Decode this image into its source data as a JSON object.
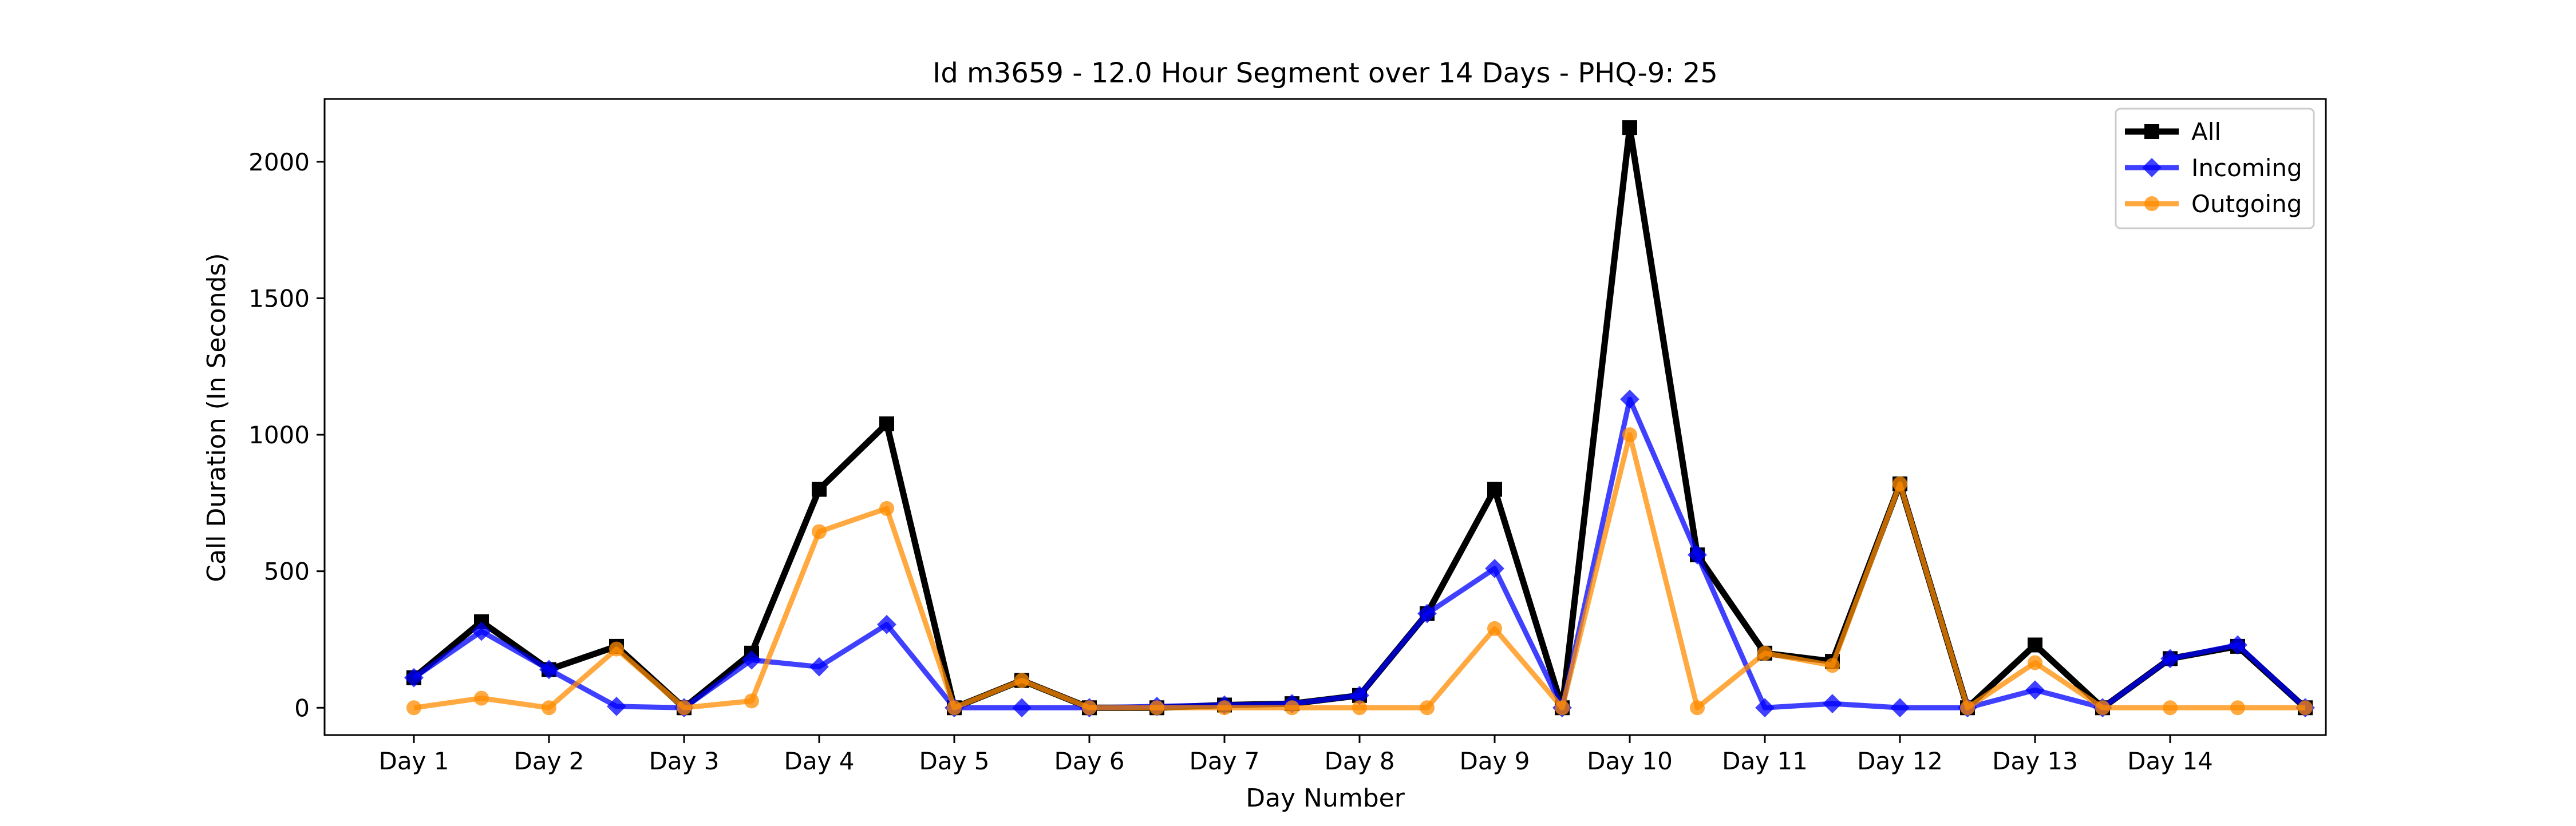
{
  "chart_data": {
    "type": "line",
    "title": "Id m3659 - 12.0 Hour Segment over 14 Days - PHQ-9: 25",
    "xlabel": "Day Number",
    "ylabel": "Call Duration (In Seconds)",
    "x_tick_labels": [
      "Day 1",
      "Day 2",
      "Day 3",
      "Day 4",
      "Day 5",
      "Day 6",
      "Day 7",
      "Day 8",
      "Day 9",
      "Day 10",
      "Day 11",
      "Day 12",
      "Day 13",
      "Day 14"
    ],
    "y_ticks": [
      0,
      500,
      1000,
      1500,
      2000
    ],
    "ylim": [
      -100,
      2230
    ],
    "grid": false,
    "legend_position": "top-right",
    "series": [
      {
        "name": "All",
        "color": "#000000",
        "marker": "square",
        "values": [
          110,
          315,
          140,
          225,
          0,
          200,
          800,
          1040,
          0,
          100,
          0,
          0,
          10,
          15,
          45,
          345,
          800,
          0,
          2125,
          560,
          200,
          170,
          820,
          0,
          230,
          0,
          180,
          225,
          0
        ]
      },
      {
        "name": "Incoming",
        "color": "#0000ff",
        "marker": "diamond",
        "values": [
          110,
          280,
          140,
          5,
          0,
          175,
          150,
          305,
          0,
          0,
          0,
          5,
          10,
          15,
          45,
          345,
          510,
          0,
          1130,
          560,
          0,
          15,
          0,
          0,
          65,
          0,
          180,
          230,
          0
        ]
      },
      {
        "name": "Outgoing",
        "color": "#ff8c00",
        "marker": "circle",
        "values": [
          0,
          35,
          0,
          215,
          0,
          25,
          645,
          730,
          0,
          100,
          0,
          0,
          0,
          0,
          0,
          0,
          290,
          0,
          1000,
          0,
          200,
          155,
          820,
          0,
          165,
          0,
          0,
          0,
          0
        ]
      }
    ]
  }
}
